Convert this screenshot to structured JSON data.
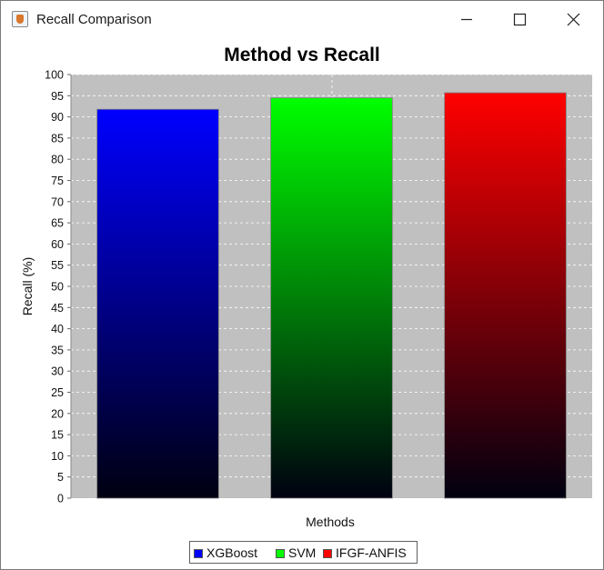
{
  "window": {
    "title": "Recall Comparison",
    "minimize_icon": "minimize-icon",
    "maximize_icon": "maximize-icon",
    "close_icon": "close-icon"
  },
  "chart_data": {
    "type": "bar",
    "title": "Method vs Recall",
    "xlabel": "Methods",
    "ylabel": "Recall (%)",
    "ylim": [
      0,
      100
    ],
    "ytick_step": 5,
    "yticks": [
      "0",
      "5",
      "10",
      "15",
      "20",
      "25",
      "30",
      "35",
      "40",
      "45",
      "50",
      "55",
      "60",
      "65",
      "70",
      "75",
      "80",
      "85",
      "90",
      "95",
      "100"
    ],
    "grid": true,
    "legend_position": "bottom",
    "plot_background": "#c0c0c0",
    "series": [
      {
        "name": "XGBoost",
        "value": 91.8,
        "color": "#0000ff"
      },
      {
        "name": "SVM",
        "value": 94.5,
        "color": "#00ff00"
      },
      {
        "name": "IFGF-ANFIS",
        "value": 95.7,
        "color": "#ff0000"
      }
    ]
  }
}
